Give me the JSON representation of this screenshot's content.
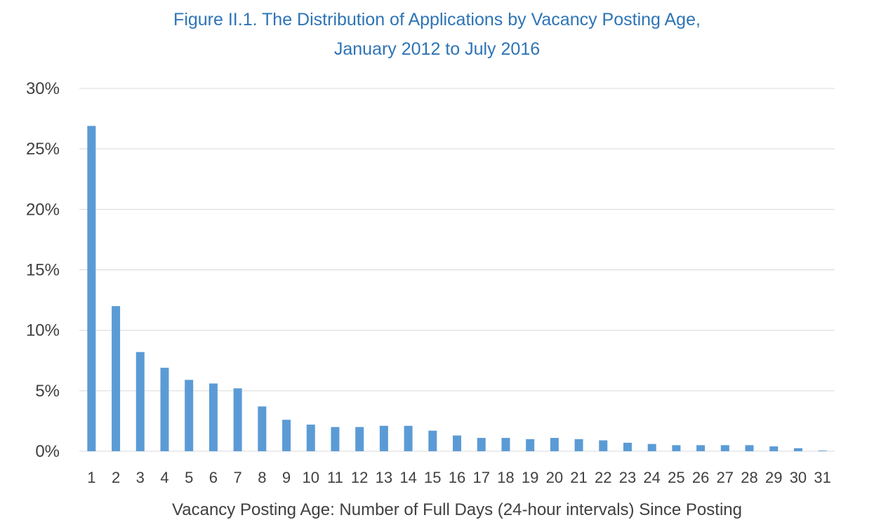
{
  "chart_data": {
    "type": "bar",
    "title_line1": "Figure II.1. The Distribution of Applications by Vacancy Posting Age,",
    "title_line2": "January 2012 to July 2016",
    "xlabel": "Vacancy Posting Age: Number of Full Days (24-hour intervals) Since Posting",
    "ylabel": "",
    "ylim": [
      0,
      30
    ],
    "yticks": [
      "0%",
      "5%",
      "10%",
      "15%",
      "20%",
      "25%",
      "30%"
    ],
    "categories": [
      "1",
      "2",
      "3",
      "4",
      "5",
      "6",
      "7",
      "8",
      "9",
      "10",
      "11",
      "12",
      "13",
      "14",
      "15",
      "16",
      "17",
      "18",
      "19",
      "20",
      "21",
      "22",
      "23",
      "24",
      "25",
      "26",
      "27",
      "28",
      "29",
      "30",
      "31"
    ],
    "values": [
      26.9,
      12.0,
      8.2,
      6.9,
      5.9,
      5.6,
      5.2,
      3.7,
      2.6,
      2.2,
      2.0,
      2.0,
      2.1,
      2.1,
      1.7,
      1.3,
      1.1,
      1.1,
      1.0,
      1.1,
      1.0,
      0.9,
      0.7,
      0.6,
      0.5,
      0.5,
      0.5,
      0.5,
      0.4,
      0.25,
      0.05
    ],
    "grid": true,
    "bar_color": "#5B9BD5",
    "grid_color": "#D9D9D9",
    "title_color": "#2E74B5"
  }
}
